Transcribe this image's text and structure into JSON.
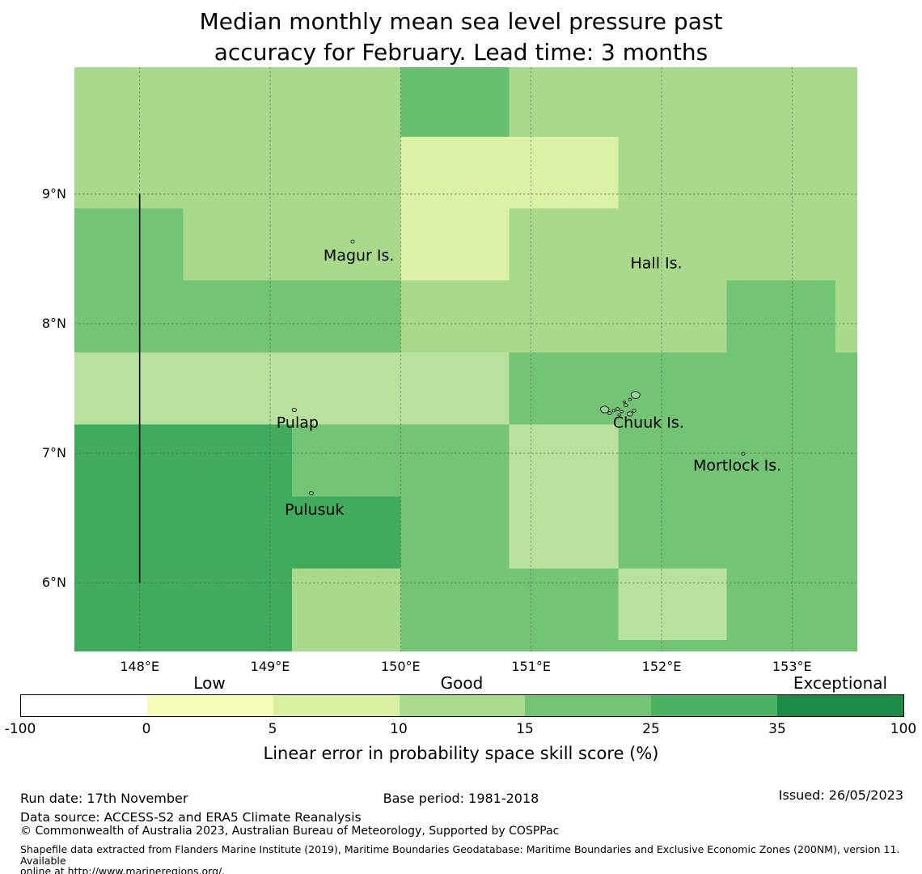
{
  "title": {
    "line1": "Median monthly mean sea level pressure past",
    "line2": "accuracy for February. Lead time: 3 months"
  },
  "axes": {
    "x_ticks": [
      {
        "label": "148°E",
        "lon": 148
      },
      {
        "label": "149°E",
        "lon": 149
      },
      {
        "label": "150°E",
        "lon": 150
      },
      {
        "label": "151°E",
        "lon": 151
      },
      {
        "label": "152°E",
        "lon": 152
      },
      {
        "label": "153°E",
        "lon": 153
      }
    ],
    "y_ticks": [
      {
        "label": "9°N",
        "lat": 9
      },
      {
        "label": "8°N",
        "lat": 8
      },
      {
        "label": "7°N",
        "lat": 7
      },
      {
        "label": "6°N",
        "lat": 6
      }
    ]
  },
  "chart_data": {
    "type": "heatmap",
    "title": "Median monthly mean sea level pressure past accuracy for February. Lead time: 3 months",
    "value_label": "Linear error in probability space skill score (%)",
    "lon_range": [
      147.5,
      153.5
    ],
    "lat_range": [
      5.47,
      9.98
    ],
    "grid_on": true,
    "lon_edges": [
      147.5,
      148.333,
      149.167,
      150.0,
      150.833,
      151.667,
      152.5,
      153.333,
      153.5
    ],
    "lat_edges": [
      9.98,
      9.444,
      8.889,
      8.333,
      7.778,
      7.222,
      6.667,
      6.111,
      5.556,
      5.47
    ],
    "legend_bins": {
      "P": "5-10",
      "B": "10-15",
      "L": "10-15",
      "M": "15-25",
      "M2": "15-25",
      "D": "25-35"
    },
    "palette": {
      "P": "#dcf0a6",
      "L": "#a9da8c",
      "B": "#b9e19e",
      "M": "#74c476",
      "M2": "#68bf70",
      "D": "#41ab5d"
    },
    "cells": [
      [
        "L",
        "L",
        "L",
        "M2",
        "L",
        "L",
        "L",
        "L"
      ],
      [
        "L",
        "L",
        "L",
        "P",
        "P",
        "L",
        "L",
        "L"
      ],
      [
        "M",
        "L",
        "L",
        "P",
        "L",
        "L",
        "L",
        "L"
      ],
      [
        "M",
        "M",
        "M",
        "L",
        "L",
        "L",
        "M",
        "L"
      ],
      [
        "B",
        "B",
        "B",
        "B",
        "M",
        "M",
        "M",
        "M"
      ],
      [
        "D",
        "D",
        "M",
        "M",
        "B",
        "M",
        "M",
        "M"
      ],
      [
        "D",
        "D",
        "D",
        "M",
        "B",
        "M",
        "M",
        "M"
      ],
      [
        "D",
        "D",
        "L",
        "M",
        "M",
        "B",
        "M",
        "M"
      ],
      [
        "D",
        "D",
        "L",
        "M",
        "M",
        "M",
        "M",
        "M"
      ]
    ],
    "boundary_line": {
      "name": "eez-boundary",
      "lon": 148,
      "lat_from": 6,
      "lat_to": 9,
      "color": "#000000"
    },
    "island_labels": [
      {
        "name": "Magur Is.",
        "lon": 149.68,
        "lat": 8.53
      },
      {
        "name": "Hall Is.",
        "lon": 151.96,
        "lat": 8.47
      },
      {
        "name": "Pulap",
        "lon": 149.21,
        "lat": 7.24
      },
      {
        "name": "Chuuk Is.",
        "lon": 151.9,
        "lat": 7.24
      },
      {
        "name": "Mortlock Is.",
        "lon": 152.58,
        "lat": 6.91
      },
      {
        "name": "Pulusuk",
        "lon": 149.34,
        "lat": 6.57
      }
    ],
    "island_marks": [
      {
        "lon": 151.566,
        "lat": 7.332,
        "s": 2.0
      },
      {
        "lon": 151.603,
        "lat": 7.307,
        "s": 0.9
      },
      {
        "lon": 151.634,
        "lat": 7.326,
        "s": 0.7
      },
      {
        "lon": 151.665,
        "lat": 7.338,
        "s": 0.9
      },
      {
        "lon": 151.696,
        "lat": 7.319,
        "s": 0.7
      },
      {
        "lon": 151.727,
        "lat": 7.369,
        "s": 0.9
      },
      {
        "lon": 151.758,
        "lat": 7.3,
        "s": 1.3
      },
      {
        "lon": 151.789,
        "lat": 7.326,
        "s": 0.9
      },
      {
        "lon": 151.802,
        "lat": 7.444,
        "s": 2.1
      },
      {
        "lon": 151.758,
        "lat": 7.413,
        "s": 0.7
      },
      {
        "lon": 151.715,
        "lat": 7.394,
        "s": 0.6
      },
      {
        "lon": 151.677,
        "lat": 7.294,
        "s": 0.7
      },
      {
        "lon": 149.633,
        "lat": 8.631,
        "s": 0.8
      },
      {
        "lon": 149.186,
        "lat": 7.332,
        "s": 1.0
      },
      {
        "lon": 149.316,
        "lat": 6.688,
        "s": 1.0
      },
      {
        "lon": 152.626,
        "lat": 6.994,
        "s": 0.8
      }
    ]
  },
  "colorbar": {
    "tick_labels": [
      "-100",
      "0",
      "5",
      "10",
      "15",
      "25",
      "35",
      "100"
    ],
    "segment_colors": [
      "#ffffff",
      "#f7fbb9",
      "#d9f0a3",
      "#abdc8e",
      "#74c476",
      "#4bb163",
      "#1e8a47"
    ],
    "qual_labels": [
      {
        "label": "Low",
        "segment": 1
      },
      {
        "label": "Good",
        "segment": 3
      },
      {
        "label": "Exceptional",
        "segment": 6
      }
    ],
    "axis_label": "Linear error in probability space skill score (%)"
  },
  "footer": {
    "run_date": "Run date: 17th November",
    "base_period": "Base period: 1981-2018",
    "issued": "Issued: 26/05/2023",
    "data_source": "Data source: ACCESS-S2 and ERA5 Climate Reanalysis",
    "copyright": "© Commonwealth of Australia 2023, Australian Bureau of Meteorology, Supported by COSPPac",
    "shapefile_line1": "Shapefile data extracted from Flanders Marine Institute (2019), Maritime Boundaries Geodatabase: Maritime Boundaries and Exclusive Economic Zones (200NM), version 11. Available",
    "shapefile_line2": "online at http://www.marineregions.org/."
  }
}
